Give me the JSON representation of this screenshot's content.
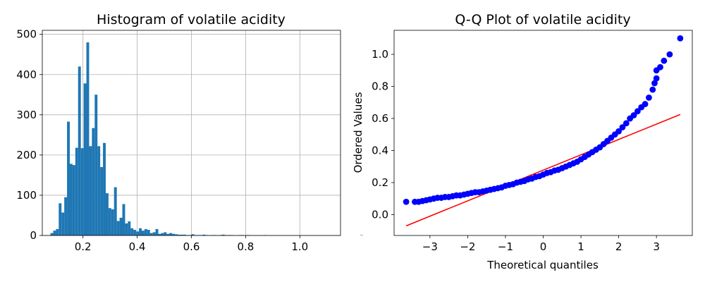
{
  "chart_data": [
    {
      "type": "bar",
      "title": "Histogram of volatile acidity",
      "xlabel": "",
      "ylabel": "",
      "xlim": [
        0.05,
        1.15
      ],
      "ylim": [
        0,
        510
      ],
      "xticks": [
        "0.2",
        "0.4",
        "0.6",
        "0.8",
        "1.0"
      ],
      "xtick_values": [
        0.2,
        0.4,
        0.6,
        0.8,
        1.0
      ],
      "yticks": [
        "0",
        "100",
        "200",
        "300",
        "400",
        "500"
      ],
      "ytick_values": [
        0,
        100,
        200,
        300,
        400,
        500
      ],
      "grid": true,
      "color": "#1f77b4",
      "bin_start": 0.08,
      "bin_width": 0.0102,
      "values": [
        6,
        12,
        16,
        80,
        57,
        95,
        283,
        178,
        175,
        218,
        420,
        217,
        378,
        480,
        222,
        267,
        350,
        222,
        170,
        230,
        105,
        68,
        65,
        120,
        36,
        44,
        78,
        30,
        35,
        18,
        14,
        10,
        18,
        12,
        16,
        14,
        6,
        8,
        16,
        4,
        6,
        8,
        4,
        6,
        4,
        3,
        2,
        2,
        2,
        1,
        1,
        3,
        1,
        1,
        1,
        2,
        1,
        0,
        1,
        1,
        0,
        1,
        2,
        1,
        1,
        1,
        0,
        0,
        1,
        1,
        0,
        1,
        0,
        0,
        0,
        0,
        0,
        1,
        0,
        0,
        0,
        0,
        0,
        0,
        0,
        0,
        0,
        0,
        0,
        0,
        0,
        0,
        0,
        0,
        0,
        0,
        0,
        0,
        0,
        0,
        0,
        0,
        0,
        0,
        0,
        0,
        0,
        0,
        0,
        0,
        0,
        0,
        1
      ]
    },
    {
      "type": "scatter",
      "title": "Q-Q Plot of volatile acidity",
      "xlabel": "Theoretical quantiles",
      "ylabel": "Ordered Values",
      "xlim": [
        -3.95,
        3.95
      ],
      "ylim": [
        -0.13,
        1.15
      ],
      "xticks": [
        "−3",
        "−2",
        "−1",
        "0",
        "1",
        "2",
        "3"
      ],
      "xtick_values": [
        -3,
        -2,
        -1,
        0,
        1,
        2,
        3
      ],
      "yticks": [
        "0.0",
        "0.2",
        "0.4",
        "0.6",
        "0.8",
        "1.0"
      ],
      "ytick_values": [
        0.0,
        0.2,
        0.4,
        0.6,
        0.8,
        1.0
      ],
      "grid": false,
      "point_color": "#0000ff",
      "line_color": "#ff0000",
      "points": [
        [
          -3.63,
          0.08
        ],
        [
          -3.4,
          0.08
        ],
        [
          -3.3,
          0.08
        ],
        [
          -3.2,
          0.085
        ],
        [
          -3.1,
          0.09
        ],
        [
          -3.0,
          0.095
        ],
        [
          -2.9,
          0.1
        ],
        [
          -2.8,
          0.105
        ],
        [
          -2.7,
          0.105
        ],
        [
          -2.6,
          0.11
        ],
        [
          -2.5,
          0.11
        ],
        [
          -2.4,
          0.115
        ],
        [
          -2.3,
          0.12
        ],
        [
          -2.2,
          0.12
        ],
        [
          -2.1,
          0.125
        ],
        [
          -2.0,
          0.13
        ],
        [
          -1.9,
          0.135
        ],
        [
          -1.8,
          0.14
        ],
        [
          -1.7,
          0.14
        ],
        [
          -1.6,
          0.145
        ],
        [
          -1.5,
          0.15
        ],
        [
          -1.4,
          0.155
        ],
        [
          -1.3,
          0.16
        ],
        [
          -1.2,
          0.165
        ],
        [
          -1.1,
          0.17
        ],
        [
          -1.0,
          0.18
        ],
        [
          -0.9,
          0.185
        ],
        [
          -0.8,
          0.19
        ],
        [
          -0.7,
          0.2
        ],
        [
          -0.6,
          0.205
        ],
        [
          -0.5,
          0.21
        ],
        [
          -0.4,
          0.22
        ],
        [
          -0.3,
          0.225
        ],
        [
          -0.2,
          0.235
        ],
        [
          -0.1,
          0.24
        ],
        [
          0.0,
          0.25
        ],
        [
          0.1,
          0.26
        ],
        [
          0.2,
          0.265
        ],
        [
          0.3,
          0.275
        ],
        [
          0.4,
          0.28
        ],
        [
          0.5,
          0.29
        ],
        [
          0.6,
          0.3
        ],
        [
          0.7,
          0.31
        ],
        [
          0.8,
          0.32
        ],
        [
          0.9,
          0.33
        ],
        [
          1.0,
          0.345
        ],
        [
          1.1,
          0.36
        ],
        [
          1.2,
          0.375
        ],
        [
          1.3,
          0.39
        ],
        [
          1.4,
          0.405
        ],
        [
          1.5,
          0.42
        ],
        [
          1.6,
          0.44
        ],
        [
          1.7,
          0.46
        ],
        [
          1.8,
          0.48
        ],
        [
          1.9,
          0.5
        ],
        [
          2.0,
          0.52
        ],
        [
          2.1,
          0.545
        ],
        [
          2.2,
          0.57
        ],
        [
          2.3,
          0.6
        ],
        [
          2.4,
          0.62
        ],
        [
          2.5,
          0.645
        ],
        [
          2.6,
          0.67
        ],
        [
          2.7,
          0.69
        ],
        [
          2.8,
          0.73
        ],
        [
          2.9,
          0.78
        ],
        [
          2.95,
          0.82
        ],
        [
          3.0,
          0.85
        ],
        [
          3.0,
          0.9
        ],
        [
          3.1,
          0.92
        ],
        [
          3.2,
          0.96
        ],
        [
          3.35,
          1.0
        ],
        [
          3.63,
          1.1
        ]
      ],
      "fit_line": [
        [
          -3.63,
          -0.07
        ],
        [
          3.63,
          0.625
        ]
      ]
    }
  ]
}
